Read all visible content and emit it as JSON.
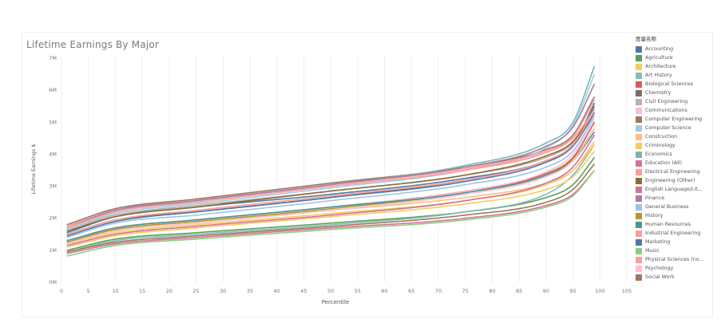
{
  "chart_data": {
    "type": "line",
    "title": "Lifetime Earnings By Major",
    "xlabel": "Percentile",
    "ylabel": "Lifetime Earnings $",
    "xlim": [
      0,
      105
    ],
    "ylim": [
      0,
      7
    ],
    "x_ticks": [
      "0",
      "5",
      "10",
      "15",
      "20",
      "25",
      "30",
      "35",
      "40",
      "45",
      "50",
      "55",
      "60",
      "65",
      "70",
      "75",
      "80",
      "85",
      "90",
      "95",
      "100",
      "105"
    ],
    "y_ticks": [
      "0M",
      "1M",
      "2M",
      "3M",
      "4M",
      "5M",
      "6M",
      "7M"
    ],
    "grid": "vertical",
    "legend_title": "度量名称",
    "legend_position": "right",
    "x": [
      1,
      10,
      25,
      50,
      75,
      90,
      95,
      99
    ],
    "series": [
      {
        "name": "Accounting",
        "color": "#4e79a7",
        "values": [
          1.55,
          2.05,
          2.35,
          2.75,
          3.25,
          3.8,
          4.3,
          5.6
        ]
      },
      {
        "name": "Agriculture",
        "color": "#59a14f",
        "values": [
          1.0,
          1.35,
          1.55,
          1.85,
          2.2,
          2.65,
          3.05,
          3.9
        ]
      },
      {
        "name": "Architecture",
        "color": "#f1ce63",
        "values": [
          1.2,
          1.55,
          1.8,
          2.15,
          2.55,
          3.05,
          3.5,
          4.4
        ]
      },
      {
        "name": "Art History",
        "color": "#86bcb6",
        "values": [
          0.95,
          1.3,
          1.5,
          1.8,
          2.2,
          2.75,
          3.35,
          4.3
        ]
      },
      {
        "name": "Biological Sciences",
        "color": "#e15759",
        "values": [
          1.3,
          1.7,
          1.95,
          2.35,
          2.85,
          3.4,
          3.9,
          5.0
        ]
      },
      {
        "name": "Chemistry",
        "color": "#79706e",
        "values": [
          1.5,
          1.95,
          2.2,
          2.65,
          3.2,
          3.8,
          4.3,
          5.5
        ]
      },
      {
        "name": "Civil Engineering",
        "color": "#bab0ac",
        "values": [
          1.65,
          2.1,
          2.4,
          2.85,
          3.35,
          3.9,
          4.35,
          5.2
        ]
      },
      {
        "name": "Communications",
        "color": "#fabfd2",
        "values": [
          1.3,
          1.7,
          1.95,
          2.35,
          2.85,
          3.45,
          4.0,
          5.1
        ]
      },
      {
        "name": "Computer Engineering",
        "color": "#9d7660",
        "values": [
          1.8,
          2.3,
          2.6,
          3.1,
          3.6,
          4.15,
          4.6,
          5.8
        ]
      },
      {
        "name": "Computer Science",
        "color": "#a0cbe8",
        "values": [
          1.65,
          2.15,
          2.45,
          2.95,
          3.5,
          4.2,
          4.9,
          6.5
        ]
      },
      {
        "name": "Construction",
        "color": "#ffbe7d",
        "values": [
          1.3,
          1.65,
          1.9,
          2.25,
          2.65,
          3.1,
          3.5,
          4.3
        ]
      },
      {
        "name": "Criminology",
        "color": "#f1ce63",
        "values": [
          1.1,
          1.45,
          1.7,
          2.05,
          2.45,
          2.9,
          3.3,
          4.1
        ]
      },
      {
        "name": "Economics",
        "color": "#76b7b2",
        "values": [
          1.7,
          2.2,
          2.55,
          3.05,
          3.65,
          4.35,
          5.0,
          6.75
        ]
      },
      {
        "name": "Education (All)",
        "color": "#d37295",
        "values": [
          0.9,
          1.2,
          1.4,
          1.7,
          2.0,
          2.4,
          2.75,
          3.5
        ]
      },
      {
        "name": "Electrical Engineering",
        "color": "#ff9d9a",
        "values": [
          1.75,
          2.25,
          2.55,
          3.05,
          3.55,
          4.1,
          4.55,
          5.7
        ]
      },
      {
        "name": "Engineering (Other)",
        "color": "#8c6d31",
        "values": [
          1.6,
          2.05,
          2.35,
          2.85,
          3.35,
          3.95,
          4.4,
          5.4
        ]
      },
      {
        "name": "English Language/Lit...",
        "color": "#d37295",
        "values": [
          1.15,
          1.5,
          1.75,
          2.1,
          2.55,
          3.1,
          3.6,
          4.6
        ]
      },
      {
        "name": "Finance",
        "color": "#b07aa1",
        "values": [
          1.7,
          2.25,
          2.55,
          3.05,
          3.6,
          4.25,
          4.85,
          6.2
        ]
      },
      {
        "name": "General Business",
        "color": "#9cc6e0",
        "values": [
          1.4,
          1.85,
          2.1,
          2.55,
          3.05,
          3.6,
          4.1,
          5.2
        ]
      },
      {
        "name": "History",
        "color": "#b6992d",
        "values": [
          1.25,
          1.65,
          1.9,
          2.3,
          2.8,
          3.35,
          3.85,
          4.8
        ]
      },
      {
        "name": "Human Resources",
        "color": "#499894",
        "values": [
          1.3,
          1.7,
          1.95,
          2.35,
          2.8,
          3.35,
          3.8,
          4.7
        ]
      },
      {
        "name": "Industrial Engineering",
        "color": "#ff9d9a",
        "values": [
          1.7,
          2.2,
          2.5,
          3.0,
          3.5,
          4.05,
          4.5,
          5.4
        ]
      },
      {
        "name": "Marketing",
        "color": "#4e79a7",
        "values": [
          1.45,
          1.9,
          2.2,
          2.65,
          3.15,
          3.75,
          4.25,
          5.3
        ]
      },
      {
        "name": "Music",
        "color": "#8cd17d",
        "values": [
          0.82,
          1.15,
          1.35,
          1.65,
          1.95,
          2.35,
          2.7,
          3.5
        ]
      },
      {
        "name": "Physical Sciences (no...",
        "color": "#ff9d9a",
        "values": [
          1.5,
          1.95,
          2.25,
          2.7,
          3.2,
          3.8,
          4.3,
          5.4
        ]
      },
      {
        "name": "Psychology",
        "color": "#fabfd2",
        "values": [
          1.2,
          1.6,
          1.85,
          2.25,
          2.75,
          3.3,
          3.8,
          4.8
        ]
      },
      {
        "name": "Social Work",
        "color": "#9d7660",
        "values": [
          0.95,
          1.25,
          1.45,
          1.75,
          2.1,
          2.5,
          2.9,
          3.7
        ]
      }
    ]
  }
}
